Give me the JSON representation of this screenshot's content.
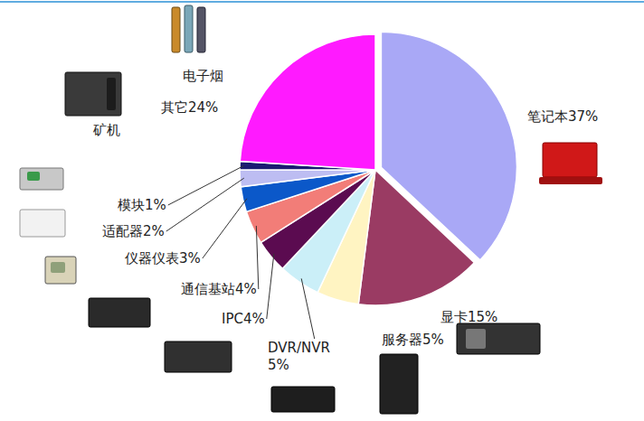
{
  "chart_data": {
    "type": "pie",
    "categories": [
      "笔记本",
      "显卡",
      "服务器",
      "DVR/NVR",
      "IPC",
      "通信基站",
      "仪器仪表",
      "适配器",
      "模块",
      "其它"
    ],
    "values": [
      37,
      15,
      5,
      5,
      4,
      4,
      3,
      2,
      1,
      24
    ],
    "value_labels": [
      "37%",
      "15%",
      "5%",
      "5%",
      "4%",
      "4%",
      "3%",
      "2%",
      "1%",
      "24%"
    ],
    "colors": [
      "#a9a8f6",
      "#9a3b63",
      "#fff4c2",
      "#cbeff8",
      "#5b0b50",
      "#f27d78",
      "#0b58c9",
      "#bdbdf2",
      "#1b1b72",
      "#ff1aff"
    ],
    "data_labels": true,
    "annotations": [
      "电子烟",
      "矿机"
    ]
  }
}
